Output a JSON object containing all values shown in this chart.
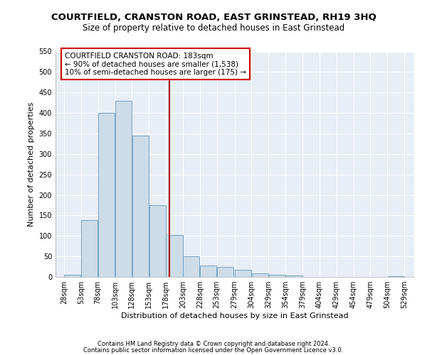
{
  "title": "COURTFIELD, CRANSTON ROAD, EAST GRINSTEAD, RH19 3HQ",
  "subtitle": "Size of property relative to detached houses in East Grinstead",
  "xlabel": "Distribution of detached houses by size in East Grinstead",
  "ylabel": "Number of detached properties",
  "bar_color": "#ccdce8",
  "bar_edge_color": "#6699bb",
  "background_color": "#e8eef6",
  "grid_color": "#ffffff",
  "bins": [
    28,
    53,
    78,
    103,
    128,
    153,
    178,
    203,
    228,
    253,
    279,
    304,
    329,
    354,
    379,
    404,
    429,
    454,
    479,
    504,
    529
  ],
  "values": [
    5,
    138,
    400,
    430,
    345,
    175,
    103,
    50,
    27,
    25,
    18,
    8,
    5,
    4,
    0,
    0,
    0,
    0,
    0,
    1
  ],
  "vline_x": 183,
  "vline_color": "#aa0000",
  "vline_linewidth": 1.5,
  "annotation_text": "COURTFIELD CRANSTON ROAD: 183sqm\n← 90% of detached houses are smaller (1,538)\n10% of semi-detached houses are larger (175) →",
  "annotation_box_color": "#ffffff",
  "annotation_box_edge_color": "#cc0000",
  "ylim": [
    0,
    550
  ],
  "yticks": [
    0,
    50,
    100,
    150,
    200,
    250,
    300,
    350,
    400,
    450,
    500,
    550
  ],
  "footer1": "Contains HM Land Registry data © Crown copyright and database right 2024.",
  "footer2": "Contains public sector information licensed under the Open Government Licence v3.0.",
  "title_fontsize": 9.5,
  "subtitle_fontsize": 8.5,
  "xlabel_fontsize": 8,
  "ylabel_fontsize": 8,
  "tick_fontsize": 7,
  "annotation_fontsize": 7.5,
  "footer_fontsize": 6
}
